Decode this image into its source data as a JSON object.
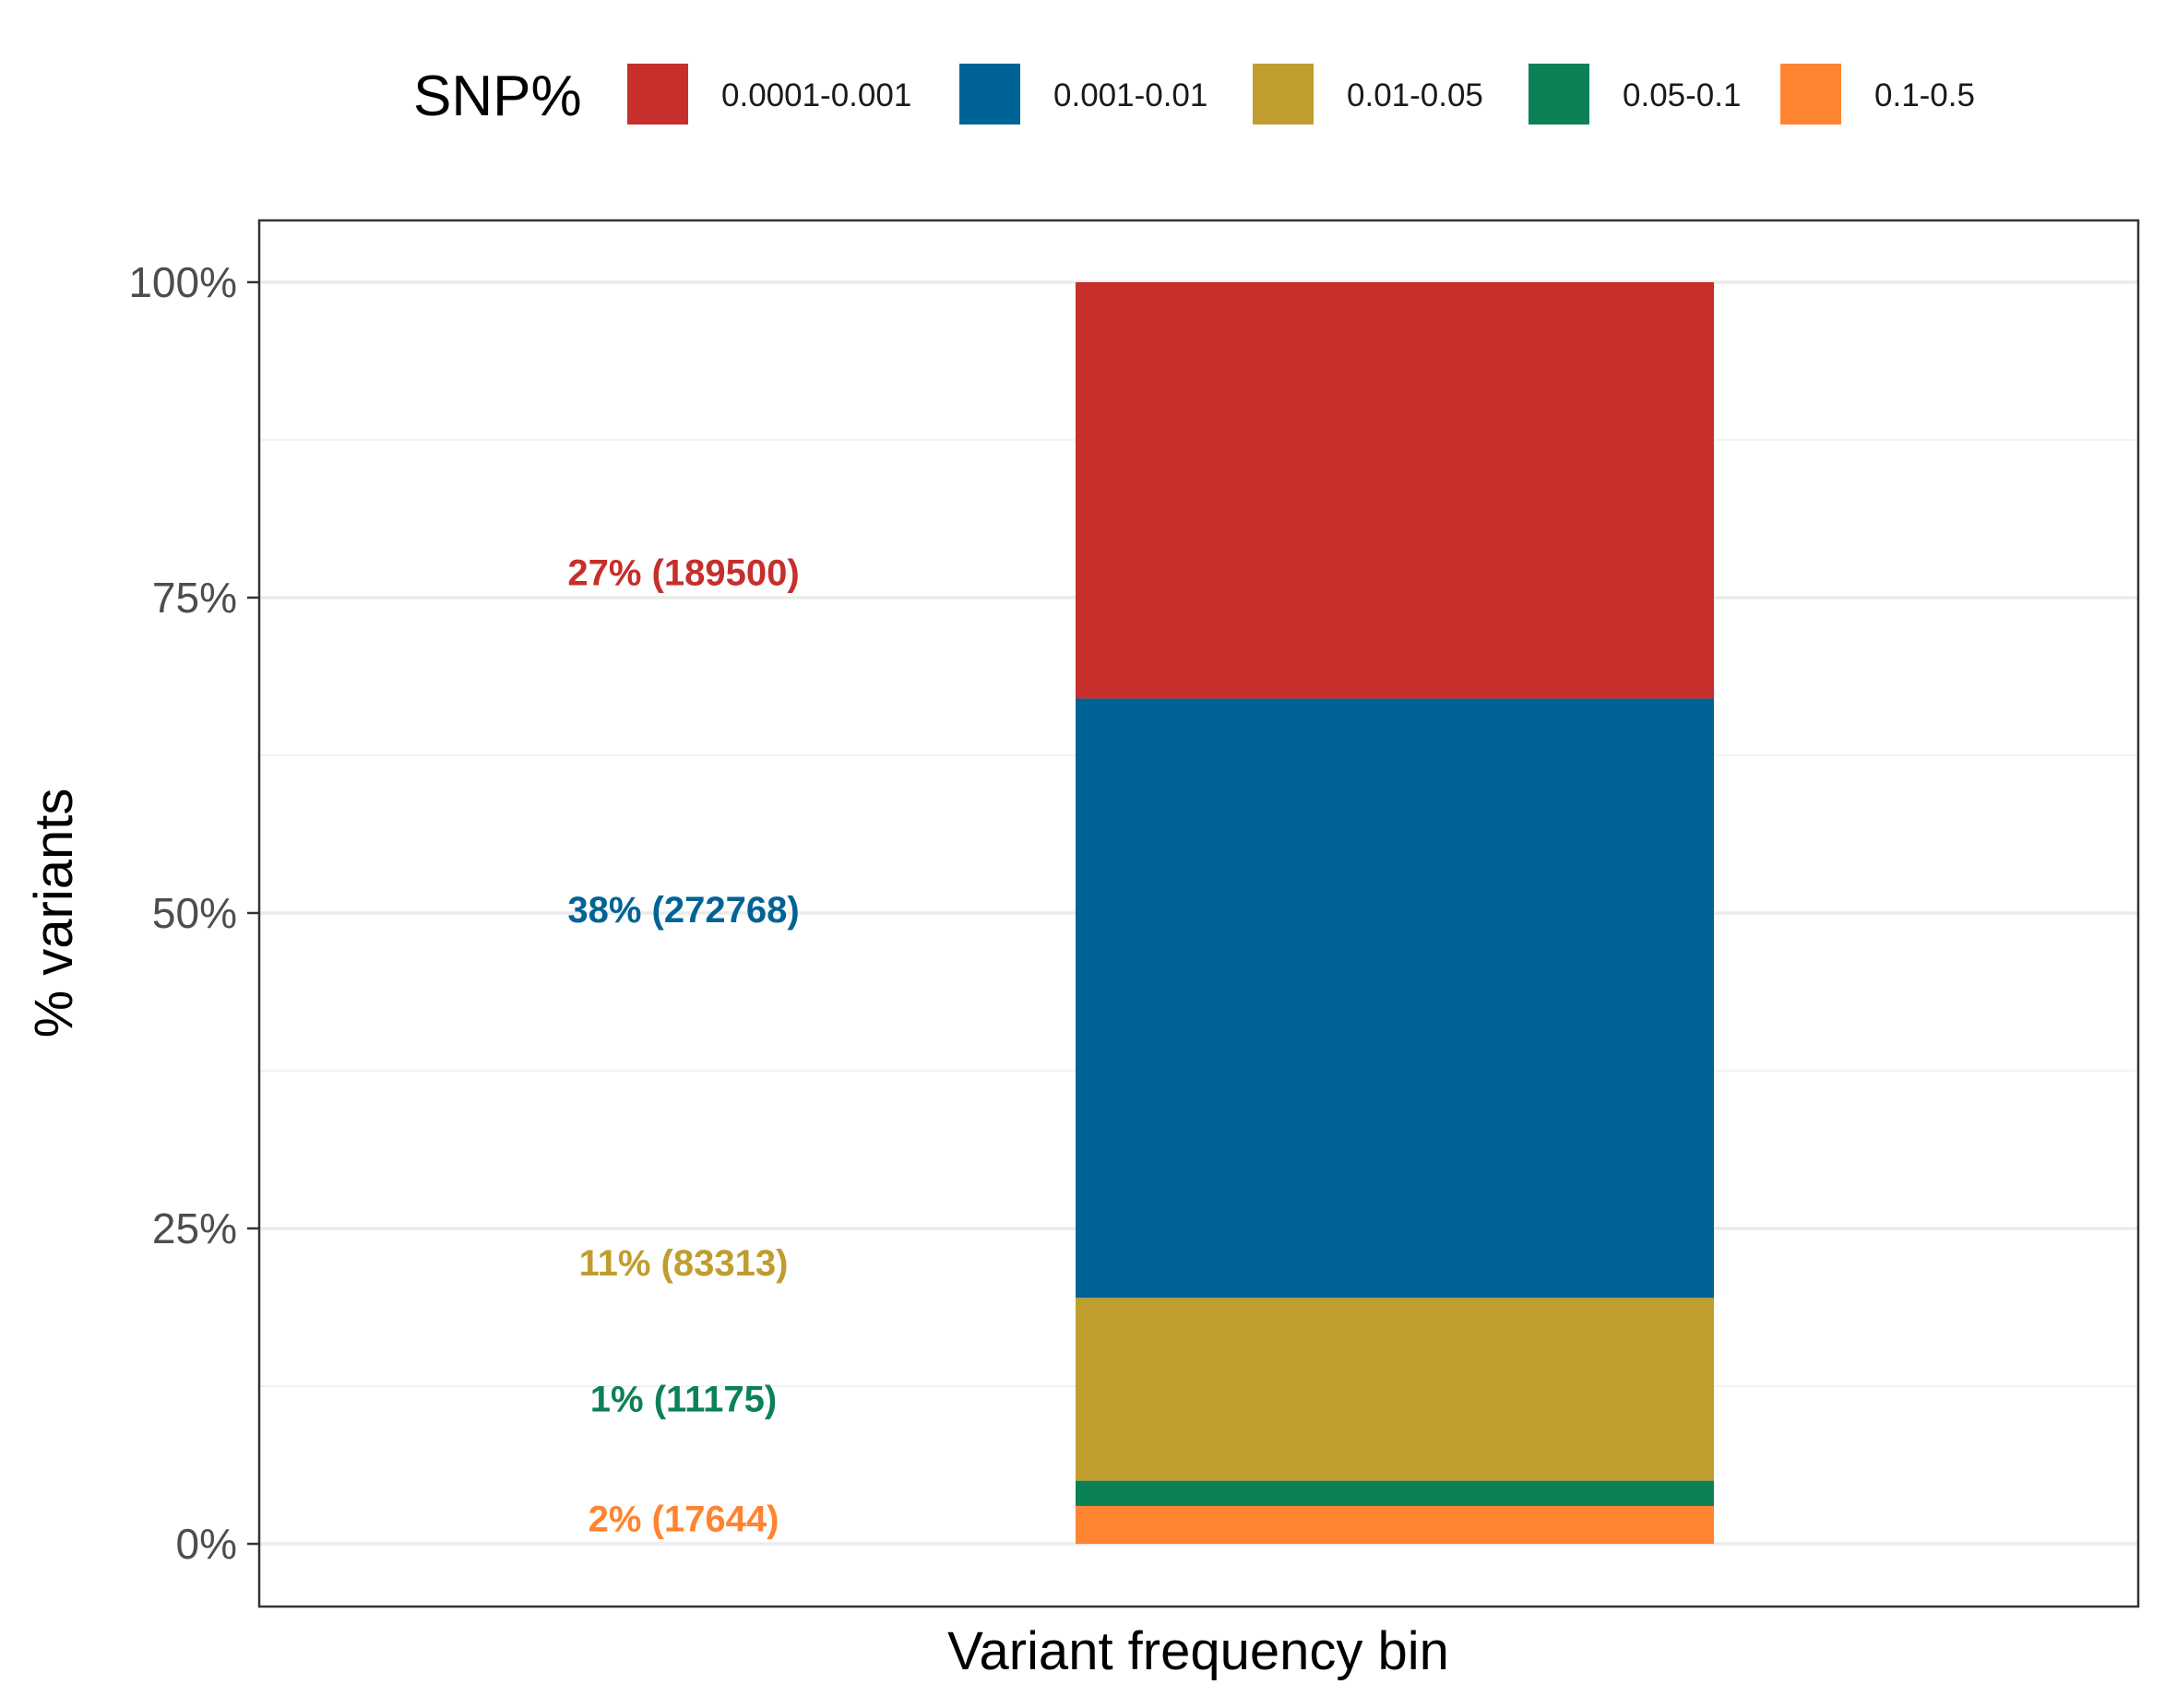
{
  "chart_data": {
    "type": "bar",
    "stacked": true,
    "categories": [
      ""
    ],
    "xlabel": "Variant frequency bin",
    "ylabel": "% variants",
    "ylim": [
      0,
      1
    ],
    "yticks": [
      0,
      0.25,
      0.5,
      0.75,
      1.0
    ],
    "ytick_labels": [
      "0%",
      "25%",
      "50%",
      "75%",
      "100%"
    ],
    "grid": true,
    "legend": {
      "title": "SNP%",
      "position": "top"
    },
    "series": [
      {
        "name": "0.0001-0.001",
        "color": "#C62F2B",
        "count": 189500,
        "fraction": 0.33,
        "label": "27% (189500)"
      },
      {
        "name": "0.001-0.01",
        "color": "#006395",
        "count": 272768,
        "fraction": 0.475,
        "label": "38% (272768)"
      },
      {
        "name": "0.01-0.05",
        "color": "#BF9D2F",
        "count": 83313,
        "fraction": 0.145,
        "label": "11% (83313)"
      },
      {
        "name": "0.05-0.1",
        "color": "#0C8155",
        "count": 11175,
        "fraction": 0.02,
        "label": "1% (11175)"
      },
      {
        "name": "0.1-0.5",
        "color": "#FF8431",
        "count": 17644,
        "fraction": 0.03,
        "label": "2% (17644)"
      }
    ],
    "label_y_positions": [
      0.77,
      0.503,
      0.223,
      0.115,
      0.02
    ]
  }
}
